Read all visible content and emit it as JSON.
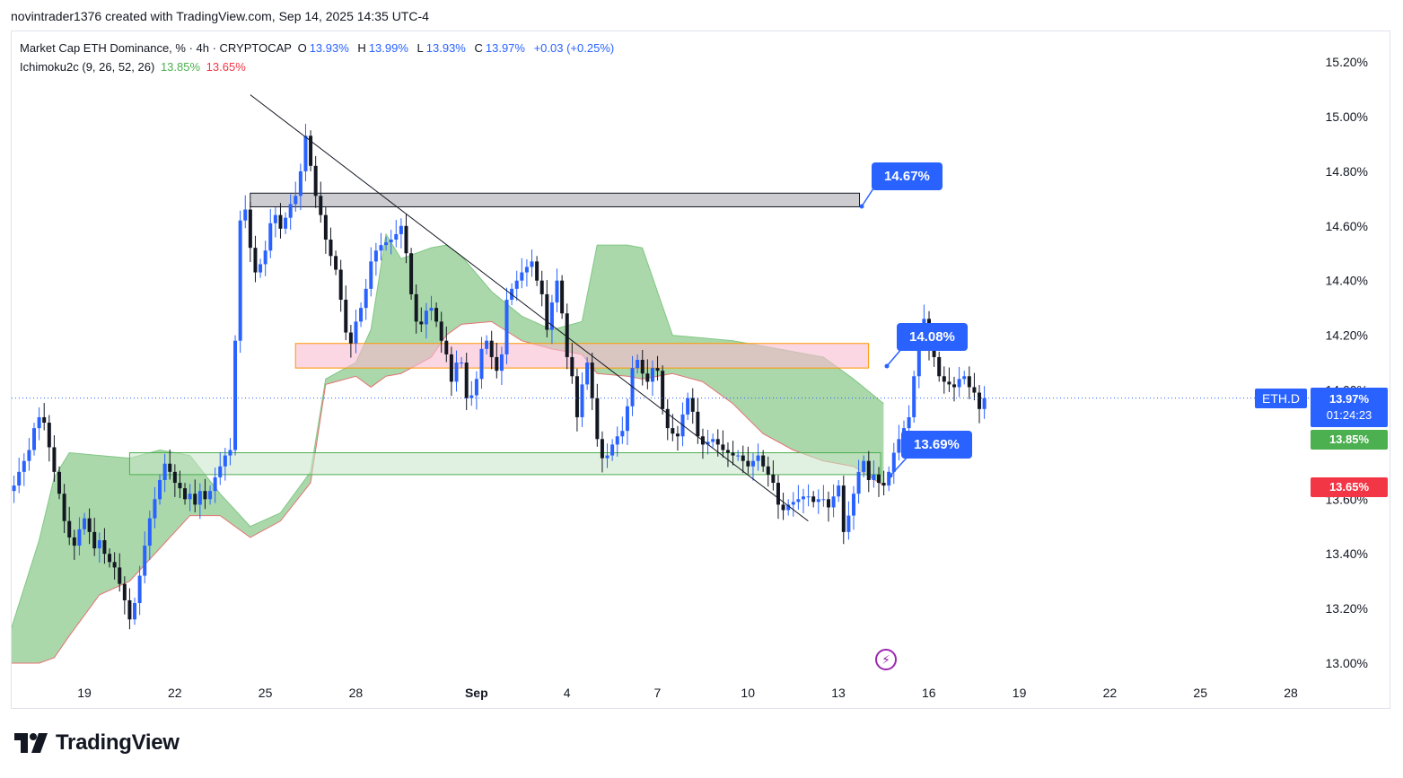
{
  "header": {
    "attribution": "novintrader1376 created with TradingView.com, Sep 14, 2025 14:35 UTC-4"
  },
  "legend": {
    "title": "Market Cap ETH Dominance, % · 4h · CRYPTOCAP",
    "o_label": "O",
    "o_value": "13.93%",
    "h_label": "H",
    "h_value": "13.99%",
    "l_label": "L",
    "l_value": "13.93%",
    "c_label": "C",
    "c_value": "13.97%",
    "change": "+0.03 (+0.25%)",
    "indicator": "Ichimoku2c (9, 26, 52, 26)",
    "ind_value1": "13.85%",
    "ind_value2": "13.65%"
  },
  "callouts": {
    "top": "14.67%",
    "mid": "14.08%",
    "low": "13.69%"
  },
  "price_scale": {
    "symbol": "ETH.D",
    "last_price": "13.97%",
    "countdown": "01:24:23",
    "cloud_a": "13.85%",
    "cloud_b": "13.65%"
  },
  "brand": {
    "name": "TradingView"
  },
  "colors": {
    "up": "#2962ff",
    "down": "#131722",
    "cloud": "#a5d6a7",
    "accent": "#2962ff",
    "red": "#f23645",
    "green": "#4caf50"
  },
  "chart_data": {
    "type": "candlestick",
    "title": "Market Cap ETH Dominance, %",
    "timeframe": "4h",
    "y_ticks": [
      "15.20%",
      "15.00%",
      "14.80%",
      "14.60%",
      "14.40%",
      "14.20%",
      "14.00%",
      "13.80%",
      "13.60%",
      "13.40%",
      "13.20%",
      "13.00%"
    ],
    "y_tick_values": [
      15.2,
      15.0,
      14.8,
      14.6,
      14.4,
      14.2,
      14.0,
      13.8,
      13.6,
      13.4,
      13.2,
      13.0
    ],
    "x_ticks": [
      "19",
      "22",
      "25",
      "28",
      "Sep",
      "4",
      "7",
      "10",
      "13",
      "16",
      "19",
      "22",
      "25",
      "28"
    ],
    "x_tick_days": [
      19,
      22,
      25,
      28,
      32,
      35,
      38,
      41,
      44,
      47,
      50,
      53,
      56,
      59
    ],
    "ylim": [
      12.96,
      15.23
    ],
    "xlim_days": [
      16.5,
      59.3
    ],
    "last_price": 13.97,
    "zones": [
      {
        "name": "supply-zone",
        "from_day": 24.5,
        "to_day": 44.7,
        "low": 14.67,
        "high": 14.72
      },
      {
        "name": "mid-zone",
        "from_day": 26.0,
        "to_day": 45.0,
        "low": 14.08,
        "high": 14.17
      },
      {
        "name": "demand-zone",
        "from_day": 20.5,
        "to_day": 45.4,
        "low": 13.69,
        "high": 13.77
      }
    ],
    "trendline": {
      "start_day": 24.5,
      "start_value": 15.08,
      "end_day": 43.0,
      "end_value": 13.52
    },
    "cloud": {
      "x_days": [
        16.5,
        17.5,
        18.0,
        18.5,
        19.5,
        20.5,
        21.5,
        22.5,
        23.5,
        24.5,
        25.5,
        26.5,
        27.0,
        28.0,
        28.5,
        29.0,
        29.5,
        30.5,
        31.0,
        31.5,
        32.5,
        33.5,
        34.5,
        35.5,
        36.0,
        37.0,
        37.5,
        38.5,
        39.5,
        40.5,
        41.5,
        42.5,
        43.5,
        44.5,
        45.5
      ],
      "upper": [
        13.1,
        13.45,
        13.68,
        13.77,
        13.76,
        13.75,
        13.78,
        13.76,
        13.62,
        13.5,
        13.55,
        13.7,
        14.04,
        14.1,
        14.22,
        14.57,
        14.48,
        14.52,
        14.53,
        14.49,
        14.36,
        14.27,
        14.22,
        14.25,
        14.53,
        14.53,
        14.52,
        14.2,
        14.19,
        14.18,
        14.16,
        14.14,
        14.12,
        14.04,
        13.95
      ],
      "lower": [
        13.0,
        13.0,
        13.02,
        13.1,
        13.25,
        13.3,
        13.42,
        13.54,
        13.54,
        13.46,
        13.52,
        13.66,
        14.02,
        14.05,
        14.01,
        14.05,
        14.06,
        14.12,
        14.2,
        14.24,
        14.25,
        14.18,
        14.15,
        14.13,
        14.06,
        14.05,
        14.04,
        14.06,
        14.03,
        13.95,
        13.84,
        13.78,
        13.74,
        13.72,
        13.65
      ]
    },
    "candles": {
      "start_day": 16.5,
      "step_days": 0.1667,
      "closes": [
        13.63,
        13.65,
        13.7,
        13.74,
        13.78,
        13.86,
        13.9,
        13.88,
        13.79,
        13.7,
        13.62,
        13.52,
        13.46,
        13.43,
        13.49,
        13.53,
        13.48,
        13.42,
        13.45,
        13.4,
        13.37,
        13.35,
        13.29,
        13.23,
        13.16,
        13.22,
        13.32,
        13.43,
        13.53,
        13.6,
        13.67,
        13.73,
        13.7,
        13.66,
        13.64,
        13.6,
        13.62,
        13.58,
        13.63,
        13.6,
        13.63,
        13.68,
        13.72,
        13.76,
        13.78,
        14.18,
        14.62,
        14.66,
        14.52,
        14.43,
        14.46,
        14.51,
        14.61,
        14.64,
        14.59,
        14.63,
        14.68,
        14.71,
        14.8,
        14.93,
        14.82,
        14.71,
        14.64,
        14.55,
        14.49,
        14.44,
        14.33,
        14.21,
        14.17,
        14.25,
        14.3,
        14.37,
        14.47,
        14.51,
        14.53,
        14.54,
        14.55,
        14.57,
        14.6,
        14.5,
        14.35,
        14.25,
        14.24,
        14.29,
        14.3,
        14.25,
        14.18,
        14.13,
        14.03,
        14.1,
        14.1,
        13.97,
        13.98,
        14.04,
        14.15,
        14.18,
        14.12,
        14.07,
        14.13,
        14.33,
        14.37,
        14.4,
        14.43,
        14.45,
        14.47,
        14.4,
        14.35,
        14.22,
        14.32,
        14.4,
        14.28,
        14.12,
        14.05,
        13.9,
        14.02,
        14.1,
        13.97,
        13.82,
        13.75,
        13.76,
        13.8,
        13.83,
        13.85,
        13.94,
        14.08,
        14.11,
        14.06,
        14.03,
        14.08,
        14.07,
        13.93,
        13.86,
        13.84,
        13.83,
        13.91,
        13.97,
        13.92,
        13.83,
        13.8,
        13.81,
        13.82,
        13.8,
        13.78,
        13.77,
        13.76,
        13.76,
        13.74,
        13.72,
        13.74,
        13.76,
        13.72,
        13.69,
        13.66,
        13.58,
        13.56,
        13.58,
        13.59,
        13.6,
        13.61,
        13.61,
        13.59,
        13.6,
        13.6,
        13.57,
        13.61,
        13.65,
        13.48,
        13.54,
        13.62,
        13.7,
        13.74,
        13.67,
        13.69,
        13.66,
        13.65,
        13.7,
        13.77,
        13.82,
        13.86,
        13.9,
        14.05,
        14.19,
        14.26,
        14.16,
        14.12,
        14.05,
        14.03,
        14.02,
        14.01,
        14.04,
        14.05,
        14.01,
        13.99,
        13.93,
        13.97
      ],
      "opens": [
        13.6,
        13.63,
        13.65,
        13.7,
        13.74,
        13.78,
        13.86,
        13.9,
        13.88,
        13.79,
        13.7,
        13.62,
        13.52,
        13.46,
        13.43,
        13.49,
        13.53,
        13.48,
        13.42,
        13.45,
        13.4,
        13.37,
        13.35,
        13.29,
        13.23,
        13.16,
        13.22,
        13.32,
        13.43,
        13.53,
        13.6,
        13.67,
        13.73,
        13.7,
        13.66,
        13.64,
        13.6,
        13.62,
        13.58,
        13.63,
        13.6,
        13.63,
        13.68,
        13.72,
        13.76,
        13.78,
        14.18,
        14.62,
        14.66,
        14.52,
        14.43,
        14.46,
        14.51,
        14.61,
        14.64,
        14.59,
        14.63,
        14.68,
        14.71,
        14.8,
        14.93,
        14.82,
        14.71,
        14.64,
        14.55,
        14.49,
        14.44,
        14.33,
        14.21,
        14.17,
        14.25,
        14.3,
        14.37,
        14.47,
        14.51,
        14.53,
        14.54,
        14.55,
        14.57,
        14.6,
        14.5,
        14.35,
        14.25,
        14.24,
        14.29,
        14.3,
        14.25,
        14.18,
        14.13,
        14.03,
        14.1,
        14.1,
        13.97,
        13.98,
        14.04,
        14.15,
        14.18,
        14.12,
        14.07,
        14.13,
        14.33,
        14.37,
        14.4,
        14.43,
        14.45,
        14.47,
        14.4,
        14.35,
        14.22,
        14.32,
        14.4,
        14.28,
        14.12,
        14.05,
        13.9,
        14.02,
        14.1,
        13.97,
        13.82,
        13.75,
        13.76,
        13.8,
        13.83,
        13.85,
        13.94,
        14.08,
        14.11,
        14.06,
        14.03,
        14.08,
        14.07,
        13.93,
        13.86,
        13.84,
        13.83,
        13.91,
        13.97,
        13.92,
        13.83,
        13.8,
        13.81,
        13.82,
        13.8,
        13.78,
        13.77,
        13.76,
        13.76,
        13.74,
        13.72,
        13.74,
        13.76,
        13.72,
        13.69,
        13.66,
        13.58,
        13.56,
        13.58,
        13.59,
        13.6,
        13.61,
        13.61,
        13.59,
        13.6,
        13.6,
        13.57,
        13.61,
        13.65,
        13.48,
        13.54,
        13.62,
        13.7,
        13.74,
        13.67,
        13.69,
        13.66,
        13.65,
        13.7,
        13.77,
        13.82,
        13.86,
        13.9,
        14.05,
        14.19,
        14.26,
        14.16,
        14.12,
        14.05,
        14.03,
        14.02,
        14.01,
        14.04,
        14.05,
        14.01,
        13.99,
        13.93
      ]
    }
  }
}
